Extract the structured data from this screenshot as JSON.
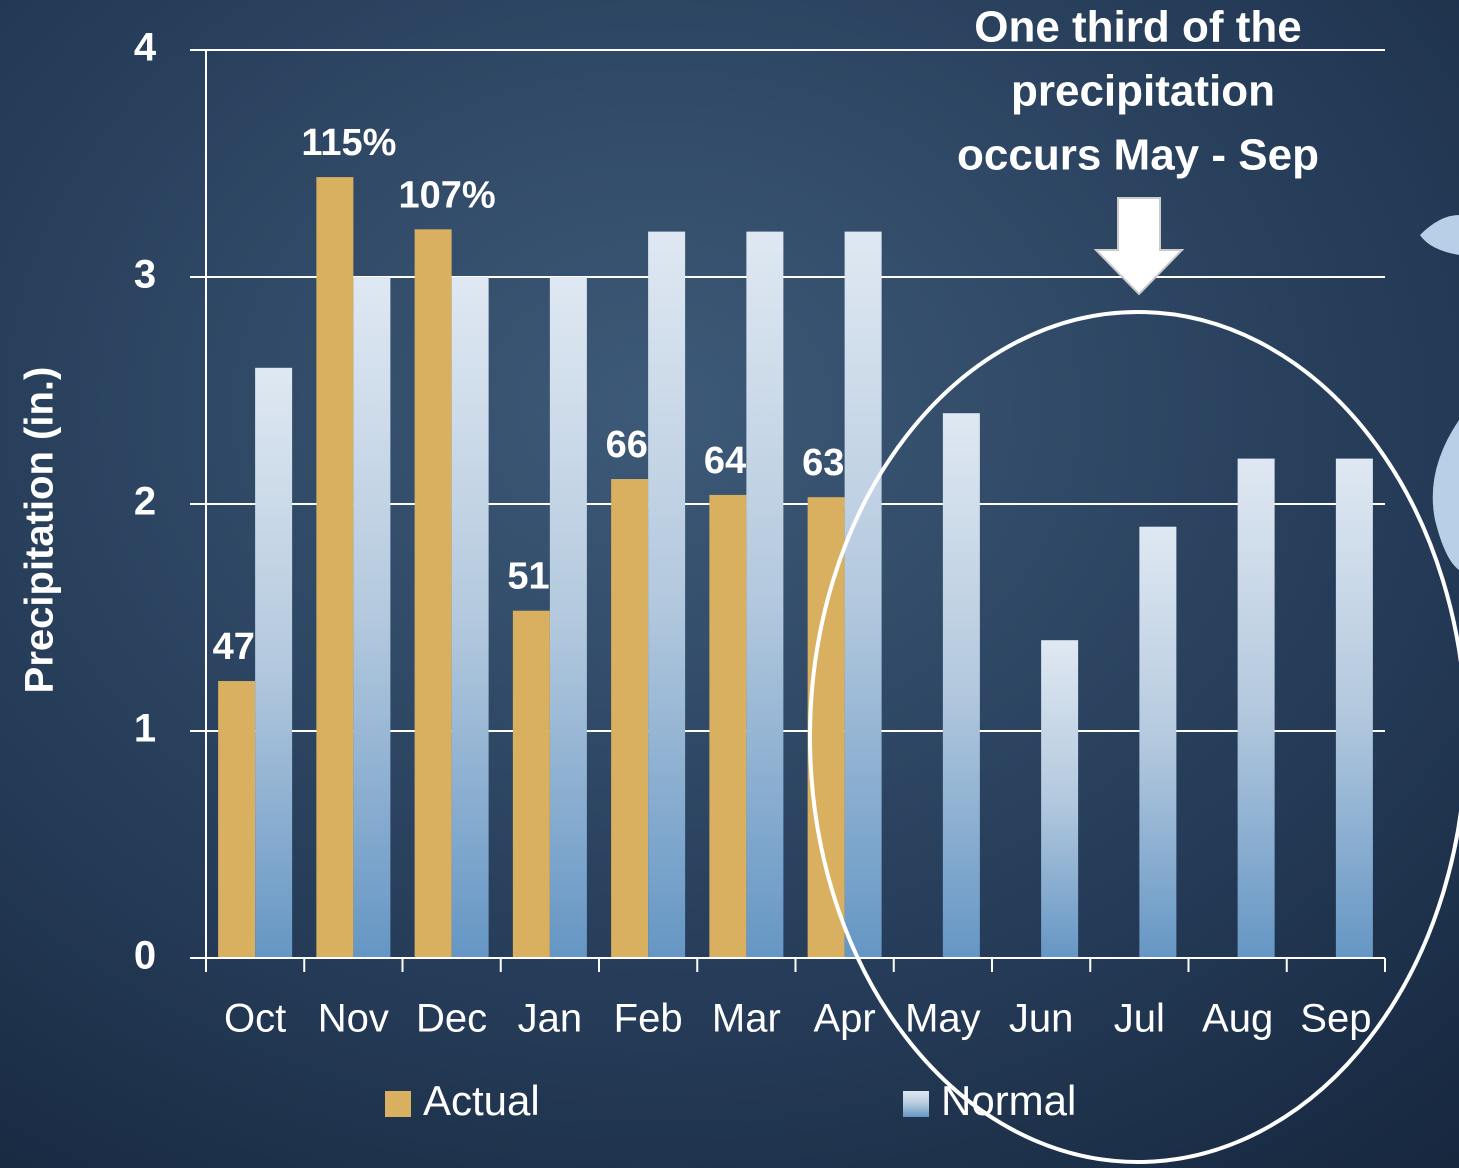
{
  "chart_data": {
    "type": "bar",
    "y_label": "Precipitation (in.)",
    "categories": [
      "Oct",
      "Nov",
      "Dec",
      "Jan",
      "Feb",
      "Mar",
      "Apr",
      "May",
      "Jun",
      "Jul",
      "Aug",
      "Sep"
    ],
    "series": [
      {
        "name": "Actual",
        "color": "#d9b060",
        "values": [
          1.22,
          3.44,
          3.21,
          1.53,
          2.11,
          2.04,
          2.03,
          null,
          null,
          null,
          null,
          null
        ],
        "labels": [
          "47%",
          "115%",
          "107%",
          "51%",
          "66%",
          "64%",
          "63%",
          null,
          null,
          null,
          null,
          null
        ]
      },
      {
        "name": "Normal",
        "color": "#c9d8e8",
        "values": [
          2.6,
          3.0,
          3.0,
          3.0,
          3.2,
          3.2,
          3.2,
          2.4,
          1.4,
          1.9,
          2.2,
          2.2
        ]
      }
    ],
    "ylim": [
      0,
      4
    ],
    "yticks": [
      0,
      1,
      2,
      3,
      4
    ],
    "grid": true,
    "annotation": [
      "One third of the",
      "precipitation",
      "occurs May - Sep"
    ]
  }
}
